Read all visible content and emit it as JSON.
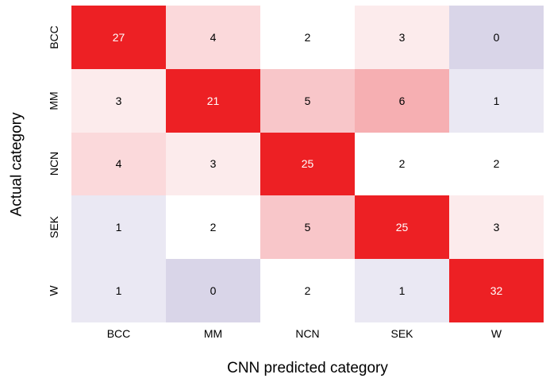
{
  "figure": {
    "background": "#ffffff",
    "text_color": "#000000"
  },
  "chart_data": {
    "type": "heatmap",
    "title": "",
    "xlabel": "CNN predicted category",
    "ylabel": "Actual category",
    "x_categories": [
      "BCC",
      "MM",
      "NCN",
      "SEK",
      "W"
    ],
    "y_categories": [
      "BCC",
      "MM",
      "NCN",
      "SEK",
      "W"
    ],
    "values": [
      [
        27,
        4,
        2,
        3,
        0
      ],
      [
        3,
        21,
        5,
        6,
        1
      ],
      [
        4,
        3,
        25,
        2,
        2
      ],
      [
        1,
        2,
        5,
        25,
        3
      ],
      [
        1,
        0,
        2,
        1,
        32
      ]
    ],
    "value_color_map": {
      "0": "#d9d5e8",
      "1": "#eae8f3",
      "2": "#ffffff",
      "3": "#fcebec",
      "4": "#fbd9db",
      "5": "#f8c6c9",
      "6": "#f6afb2",
      "21": "#ed2024",
      "25": "#ed2024",
      "27": "#ed2024",
      "32": "#ed2024"
    },
    "palette": {
      "low": "#d9d5e8",
      "mid": "#ffffff",
      "high": "#ed2024"
    },
    "cell_text_dark": "#000000",
    "cell_text_light": "#ffffff",
    "legend_position": "none",
    "grid": false
  }
}
